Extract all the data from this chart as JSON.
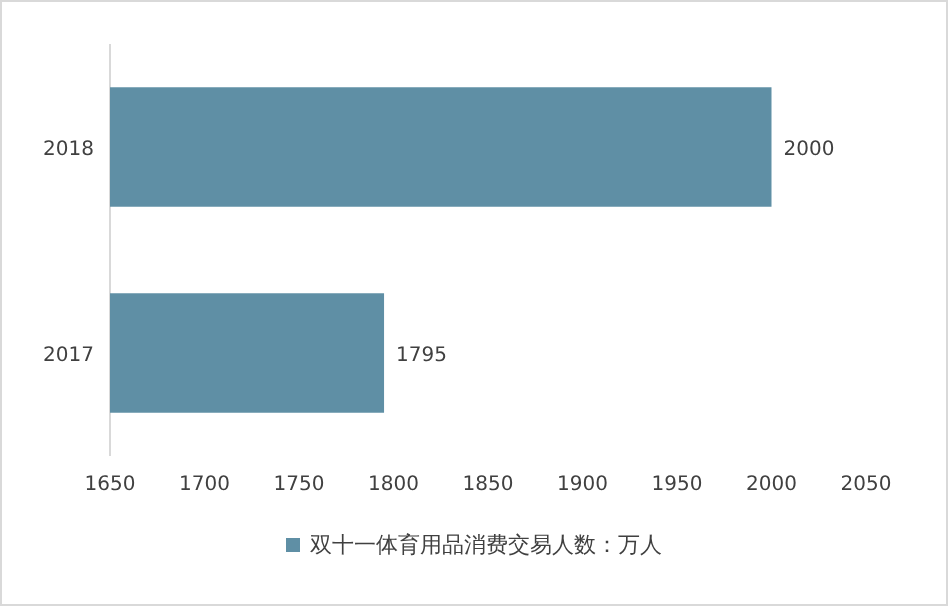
{
  "chart_data": {
    "type": "bar",
    "orientation": "horizontal",
    "categories": [
      "2018",
      "2017"
    ],
    "series": [
      {
        "name": "双十一体育用品消费交易人数：万人",
        "color": "#5f8fa5",
        "values": [
          2000,
          1795
        ]
      }
    ],
    "xlim": [
      1650,
      2050
    ],
    "xticks": [
      1650,
      1700,
      1750,
      1800,
      1850,
      1900,
      1950,
      2000,
      2050
    ],
    "data_labels": true,
    "legend": "bottom"
  }
}
